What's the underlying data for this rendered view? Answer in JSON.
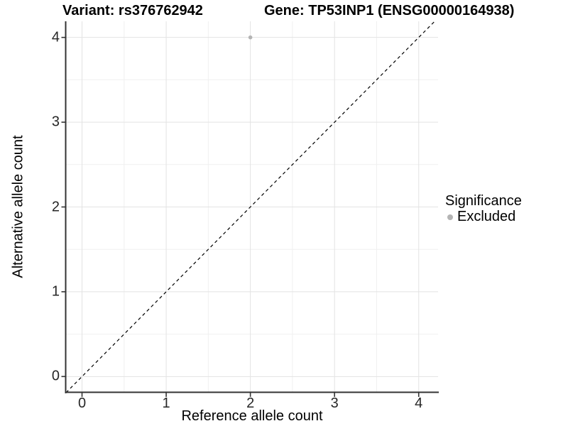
{
  "chart_data": {
    "type": "scatter",
    "titles": {
      "variant": "Variant: rs376762942",
      "gene": "Gene: TP53INP1 (ENSG00000164938)"
    },
    "xlabel": "Reference allele count",
    "ylabel": "Alternative allele count",
    "xlim": [
      -0.19,
      4.23
    ],
    "ylim": [
      -0.19,
      4.19
    ],
    "x_ticks": [
      0,
      1,
      2,
      3,
      4
    ],
    "y_ticks": [
      0,
      1,
      2,
      3,
      4
    ],
    "x_minor_ticks": [
      0.5,
      1.5,
      2.5,
      3.5
    ],
    "y_minor_ticks": [
      0.5,
      1.5,
      2.5,
      3.5
    ],
    "grid": "major-and-minor",
    "points": [
      {
        "x": 2,
        "y": 4,
        "significance": "Excluded"
      }
    ],
    "identity_line": {
      "slope": 1,
      "intercept": 0,
      "style": "dashed",
      "color": "#000000"
    },
    "legend": {
      "title": "Significance",
      "position": "right",
      "entries": [
        {
          "label": "Excluded",
          "color": "#b4b4b4"
        }
      ]
    },
    "colors": {
      "point": "#b4b4b4",
      "grid_major": "#e3e3e3",
      "grid_minor": "#f0f0f0",
      "axis_line": "#333333",
      "tick_mark": "#333333",
      "tick_text": "#262626",
      "title_text": "#000000",
      "background": "#ffffff"
    }
  }
}
